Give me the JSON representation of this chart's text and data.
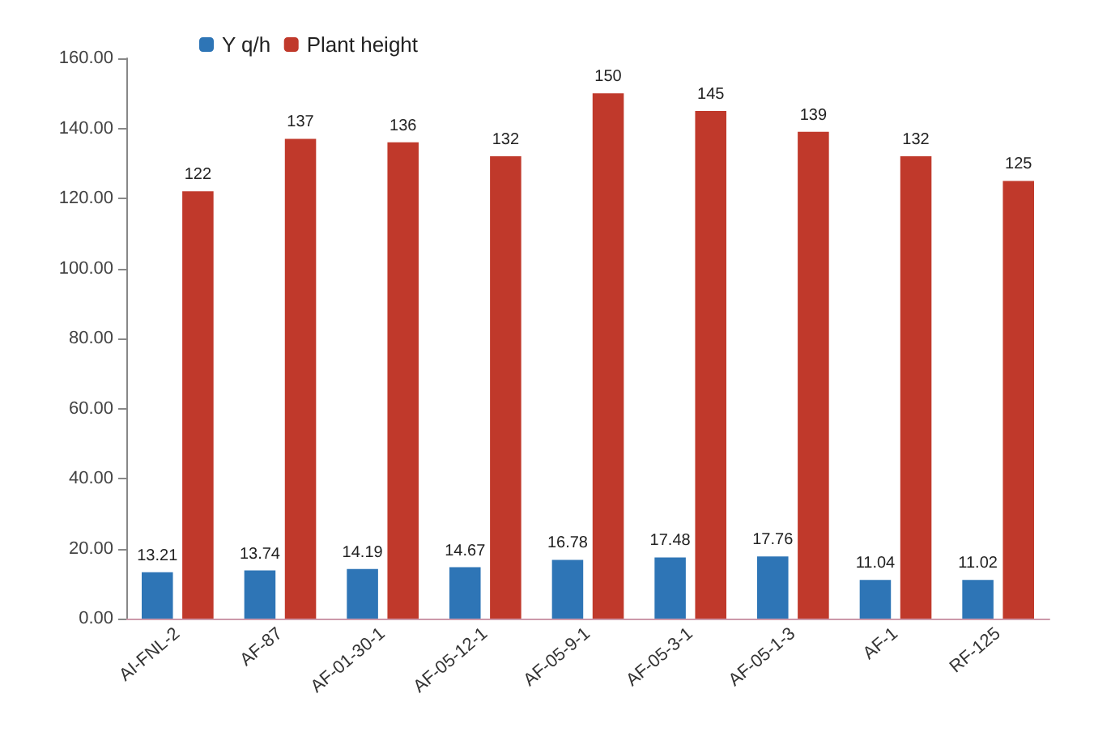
{
  "chart_data": {
    "type": "bar",
    "categories": [
      "AI-FNL-2",
      "AF-87",
      "AF-01-30-1",
      "AF-05-12-1",
      "AF-05-9-1",
      "AF-05-3-1",
      "AF-05-1-3",
      "AF-1",
      "RF-125"
    ],
    "series": [
      {
        "name": "Y q/h",
        "color": "#2e75b6",
        "values": [
          13.21,
          13.74,
          14.19,
          14.67,
          16.78,
          17.48,
          17.76,
          11.04,
          11.02
        ]
      },
      {
        "name": "Plant height",
        "color": "#c0392b",
        "values": [
          122,
          137,
          136,
          132,
          150,
          145,
          139,
          132,
          125
        ]
      }
    ],
    "ylim": [
      0,
      160
    ],
    "yticks": [
      {
        "value": 0,
        "label": "0.00"
      },
      {
        "value": 20,
        "label": "20.00"
      },
      {
        "value": 40,
        "label": "40.00"
      },
      {
        "value": 60,
        "label": "60.00"
      },
      {
        "value": 80,
        "label": "80.00"
      },
      {
        "value": 100,
        "label": "100.00"
      },
      {
        "value": 120,
        "label": "120.00"
      },
      {
        "value": 140,
        "label": "140.00"
      },
      {
        "value": 160,
        "label": "160.00"
      }
    ],
    "data_labels": true,
    "legend": "top left",
    "grid": false
  }
}
